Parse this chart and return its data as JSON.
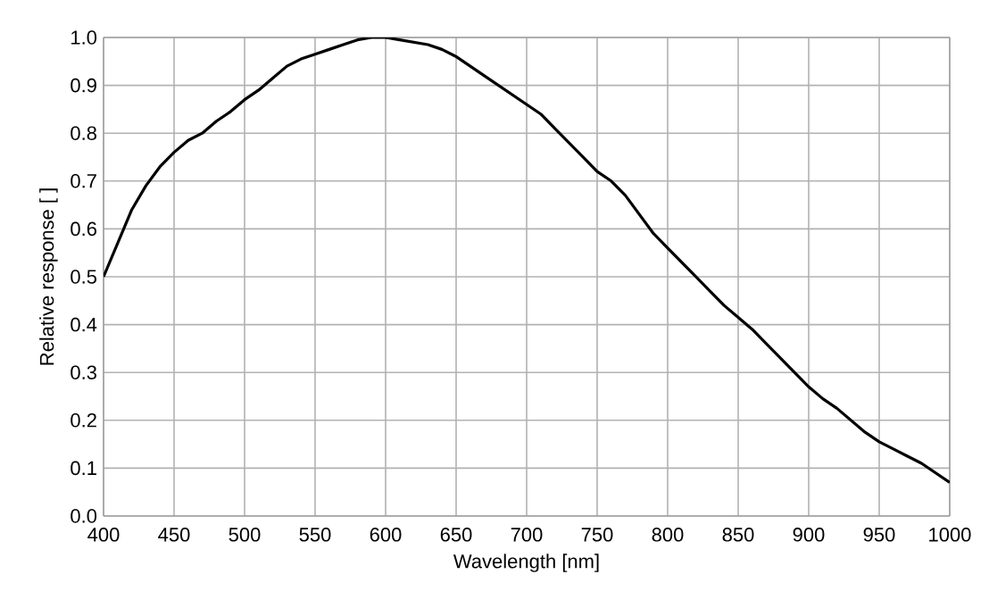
{
  "chart_data": {
    "type": "line",
    "xlabel": "Wavelength [nm]",
    "ylabel": "Relative response [ ]",
    "x": [
      400,
      410,
      420,
      430,
      440,
      450,
      460,
      470,
      480,
      490,
      500,
      510,
      520,
      530,
      540,
      550,
      560,
      570,
      580,
      590,
      600,
      610,
      620,
      630,
      640,
      650,
      660,
      670,
      680,
      690,
      700,
      710,
      720,
      730,
      740,
      750,
      760,
      770,
      780,
      790,
      800,
      810,
      820,
      830,
      840,
      850,
      860,
      870,
      880,
      890,
      900,
      910,
      920,
      930,
      940,
      950,
      960,
      970,
      980,
      990,
      1000
    ],
    "series": [
      {
        "color": "#000000",
        "values": [
          0.5,
          0.57,
          0.64,
          0.69,
          0.73,
          0.76,
          0.785,
          0.8,
          0.825,
          0.845,
          0.87,
          0.89,
          0.915,
          0.94,
          0.955,
          0.965,
          0.975,
          0.985,
          0.995,
          1.0,
          1.0,
          0.995,
          0.99,
          0.985,
          0.975,
          0.96,
          0.94,
          0.92,
          0.9,
          0.88,
          0.86,
          0.84,
          0.81,
          0.78,
          0.75,
          0.72,
          0.7,
          0.67,
          0.63,
          0.59,
          0.56,
          0.53,
          0.5,
          0.47,
          0.44,
          0.415,
          0.39,
          0.36,
          0.33,
          0.3,
          0.27,
          0.245,
          0.225,
          0.2,
          0.175,
          0.155,
          0.14,
          0.125,
          0.11,
          0.09,
          0.07
        ]
      }
    ],
    "xlim": [
      400,
      1000
    ],
    "ylim": [
      0,
      1
    ],
    "xticks": [
      400,
      450,
      500,
      550,
      600,
      650,
      700,
      750,
      800,
      850,
      900,
      950,
      1000
    ],
    "yticks": [
      {
        "value": 0,
        "label": "0.0"
      },
      {
        "value": 0.1,
        "label": "0.1"
      },
      {
        "value": 0.2,
        "label": "0.2"
      },
      {
        "value": 0.3,
        "label": "0.3"
      },
      {
        "value": 0.4,
        "label": "0.4"
      },
      {
        "value": 0.5,
        "label": "0.5"
      },
      {
        "value": 0.6,
        "label": "0.6"
      },
      {
        "value": 0.7,
        "label": "0.7"
      },
      {
        "value": 0.8,
        "label": "0.8"
      },
      {
        "value": 0.9,
        "label": "0.9"
      },
      {
        "value": 1,
        "label": "1.0"
      }
    ],
    "grid": true,
    "marker": "none",
    "line_style": "solid"
  }
}
